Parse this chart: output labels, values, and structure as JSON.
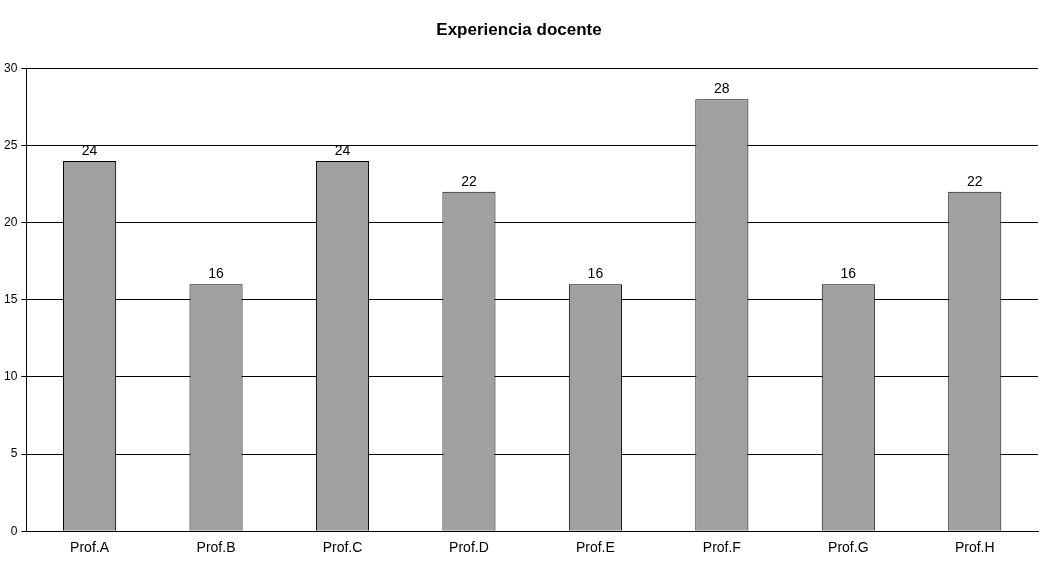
{
  "chart_data": {
    "type": "bar",
    "title": "Experiencia docente",
    "categories": [
      "Prof.A",
      "Prof.B",
      "Prof.C",
      "Prof.D",
      "Prof.E",
      "Prof.F",
      "Prof.G",
      "Prof.H"
    ],
    "values": [
      24,
      16,
      24,
      22,
      16,
      28,
      16,
      22
    ],
    "color": "#a0a0a0",
    "ylim": [
      0,
      30
    ],
    "yticks": [
      0,
      5,
      10,
      15,
      20,
      25,
      30
    ],
    "grid": "y",
    "data_labels": true,
    "legend": false
  }
}
